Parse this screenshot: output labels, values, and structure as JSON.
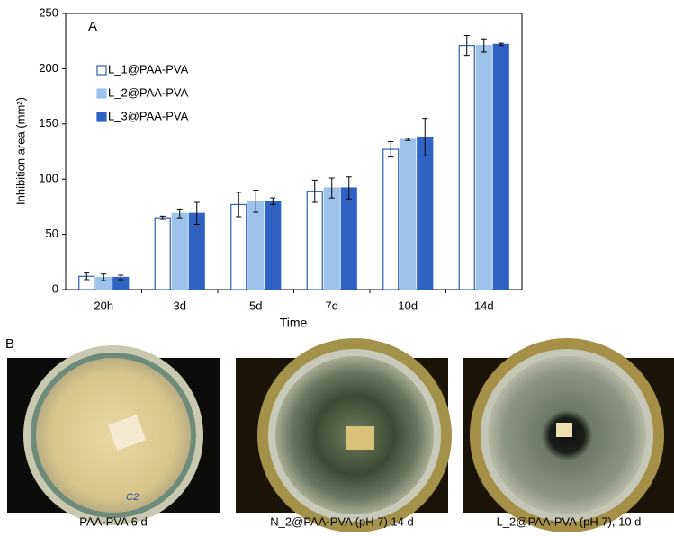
{
  "chart_data": {
    "type": "bar",
    "annotation": "A",
    "x_label": "Time",
    "y_label": "Inhibition area (mm²)",
    "categories": [
      "20h",
      "3d",
      "5d",
      "7d",
      "10d",
      "14d"
    ],
    "series": [
      {
        "name": "L_1@PAA-PVA",
        "color": "#ffffff",
        "edge": "#2f5fb3",
        "values": [
          12,
          65,
          77,
          89,
          127,
          221
        ],
        "errors": [
          3,
          1.5,
          11,
          10,
          7,
          9
        ]
      },
      {
        "name": "L_2@PAA-PVA",
        "color": "#9dc3ea",
        "edge": "#9dc3ea",
        "values": [
          11,
          69,
          80,
          92,
          136,
          221
        ],
        "errors": [
          3,
          4,
          10,
          9,
          1,
          6
        ]
      },
      {
        "name": "L_3@PAA-PVA",
        "color": "#2f62c2",
        "edge": "#2f62c2",
        "values": [
          11,
          69,
          80,
          92,
          138,
          222
        ],
        "errors": [
          2,
          10,
          3,
          10,
          17,
          1
        ]
      }
    ],
    "ylim": [
      0,
      250
    ],
    "yticks": [
      0,
      50,
      100,
      150,
      200,
      250
    ],
    "grid": false,
    "legend": "upper left"
  },
  "panel_b": {
    "label": "B",
    "photos": [
      {
        "caption": "PAA-PVA 6 d"
      },
      {
        "caption": "N_2@PAA-PVA (pH 7) 14 d"
      },
      {
        "caption": "L_2@PAA-PVA (pH 7), 10 d"
      }
    ]
  }
}
